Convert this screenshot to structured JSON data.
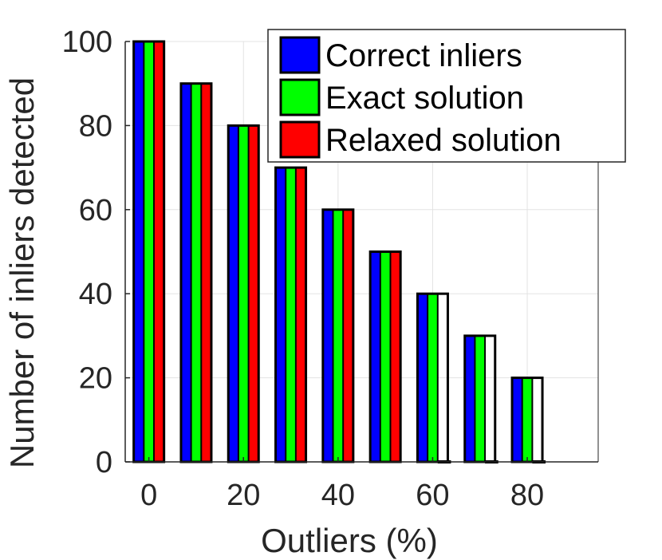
{
  "chart_data": {
    "type": "bar",
    "title": "",
    "xlabel": "Outliers (%)",
    "ylabel": "Number of inliers detected",
    "categories": [
      "0",
      "10",
      "20",
      "30",
      "40",
      "50",
      "60",
      "70",
      "80"
    ],
    "x": [
      0,
      10,
      20,
      30,
      40,
      50,
      60,
      70,
      80
    ],
    "xlim": [
      -5,
      95
    ],
    "ylim": [
      0,
      100
    ],
    "xticks": [
      "0",
      "20",
      "40",
      "60",
      "80"
    ],
    "yticks": [
      "0",
      "20",
      "40",
      "60",
      "80",
      "100"
    ],
    "grid": true,
    "legend_position": "top-right",
    "series": [
      {
        "name": "Correct inliers",
        "color": "#0000ff",
        "values": [
          100,
          90,
          80,
          70,
          60,
          50,
          40,
          30,
          20
        ]
      },
      {
        "name": "Exact solution",
        "color": "#00ff00",
        "values": [
          100,
          90,
          80,
          70,
          60,
          50,
          40,
          30,
          20
        ]
      },
      {
        "name": "Relaxed solution",
        "color": "#ff0000",
        "values": [
          100,
          90,
          80,
          70,
          60,
          50,
          0,
          0,
          0
        ]
      }
    ]
  }
}
